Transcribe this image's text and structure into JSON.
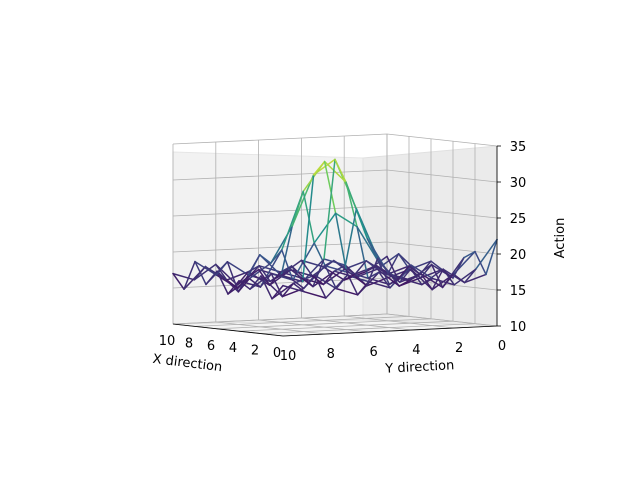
{
  "chart_data": {
    "type": "wireframe",
    "title": "",
    "xlabel": "X direction",
    "ylabel": "Y direction",
    "zlabel": "Action",
    "x_ticks": [
      "10",
      "8",
      "6",
      "4",
      "2",
      "0"
    ],
    "y_ticks": [
      "10",
      "8",
      "6",
      "4",
      "2",
      "0"
    ],
    "z_ticks": [
      "10",
      "15",
      "20",
      "25",
      "30",
      "35"
    ],
    "xlim": [
      0,
      10
    ],
    "ylim": [
      0,
      10
    ],
    "zlim": [
      10,
      35
    ],
    "grid": true,
    "colormap": [
      "#440154",
      "#3b528b",
      "#21918c",
      "#5ec962",
      "#fde725"
    ],
    "series": [
      {
        "x": 10,
        "y": [
          10,
          9,
          8,
          7,
          6,
          5,
          4,
          3,
          2,
          1,
          0
        ],
        "z": [
          17,
          16,
          18,
          15,
          17,
          16,
          18,
          17,
          15,
          16,
          18
        ]
      },
      {
        "x": 9,
        "y": [
          10,
          9,
          8,
          7,
          6,
          5,
          4,
          3,
          2,
          1,
          0
        ],
        "z": [
          15,
          18,
          16,
          17,
          15,
          17,
          16,
          18,
          16,
          17,
          15
        ]
      },
      {
        "x": 8,
        "y": [
          10,
          9,
          8,
          7,
          6,
          5,
          4,
          3,
          2,
          1,
          0
        ],
        "z": [
          19,
          17,
          15,
          18,
          17,
          16,
          15,
          17,
          18,
          16,
          17
        ]
      },
      {
        "x": 7,
        "y": [
          10,
          9,
          8,
          7,
          6,
          5,
          4,
          3,
          2,
          1,
          0
        ],
        "z": [
          16,
          19,
          17,
          16,
          18,
          15,
          17,
          16,
          17,
          19,
          16
        ]
      },
      {
        "x": 6,
        "y": [
          10,
          9,
          8,
          7,
          6,
          5,
          4,
          3,
          2,
          1,
          0
        ],
        "z": [
          18,
          15,
          20,
          17,
          16,
          19,
          18,
          15,
          16,
          17,
          18
        ]
      },
      {
        "x": 5,
        "y": [
          10,
          9,
          8,
          7,
          6,
          5,
          4,
          3,
          2,
          1,
          0
        ],
        "z": [
          15,
          17,
          19,
          24,
          31,
          33,
          26,
          19,
          15,
          16,
          17
        ]
      },
      {
        "x": 4,
        "y": [
          10,
          9,
          8,
          7,
          6,
          5,
          4,
          3,
          2,
          1,
          0
        ],
        "z": [
          17,
          16,
          21,
          29,
          33,
          30,
          22,
          17,
          16,
          18,
          16
        ]
      },
      {
        "x": 3,
        "y": [
          10,
          9,
          8,
          7,
          6,
          5,
          4,
          3,
          2,
          1,
          0
        ],
        "z": [
          16,
          18,
          17,
          22,
          26,
          24,
          19,
          16,
          17,
          15,
          19
        ]
      },
      {
        "x": 2,
        "y": [
          10,
          9,
          8,
          7,
          6,
          5,
          4,
          3,
          2,
          1,
          0
        ],
        "z": [
          18,
          15,
          16,
          19,
          18,
          17,
          16,
          18,
          15,
          17,
          20
        ]
      },
      {
        "x": 1,
        "y": [
          10,
          9,
          8,
          7,
          6,
          5,
          4,
          3,
          2,
          1,
          0
        ],
        "z": [
          15,
          17,
          18,
          16,
          15,
          18,
          17,
          16,
          18,
          16,
          17
        ]
      },
      {
        "x": 0,
        "y": [
          10,
          9,
          8,
          7,
          6,
          5,
          4,
          3,
          2,
          1,
          0
        ],
        "z": [
          17,
          16,
          15,
          18,
          17,
          16,
          19,
          17,
          16,
          18,
          22
        ]
      }
    ]
  }
}
